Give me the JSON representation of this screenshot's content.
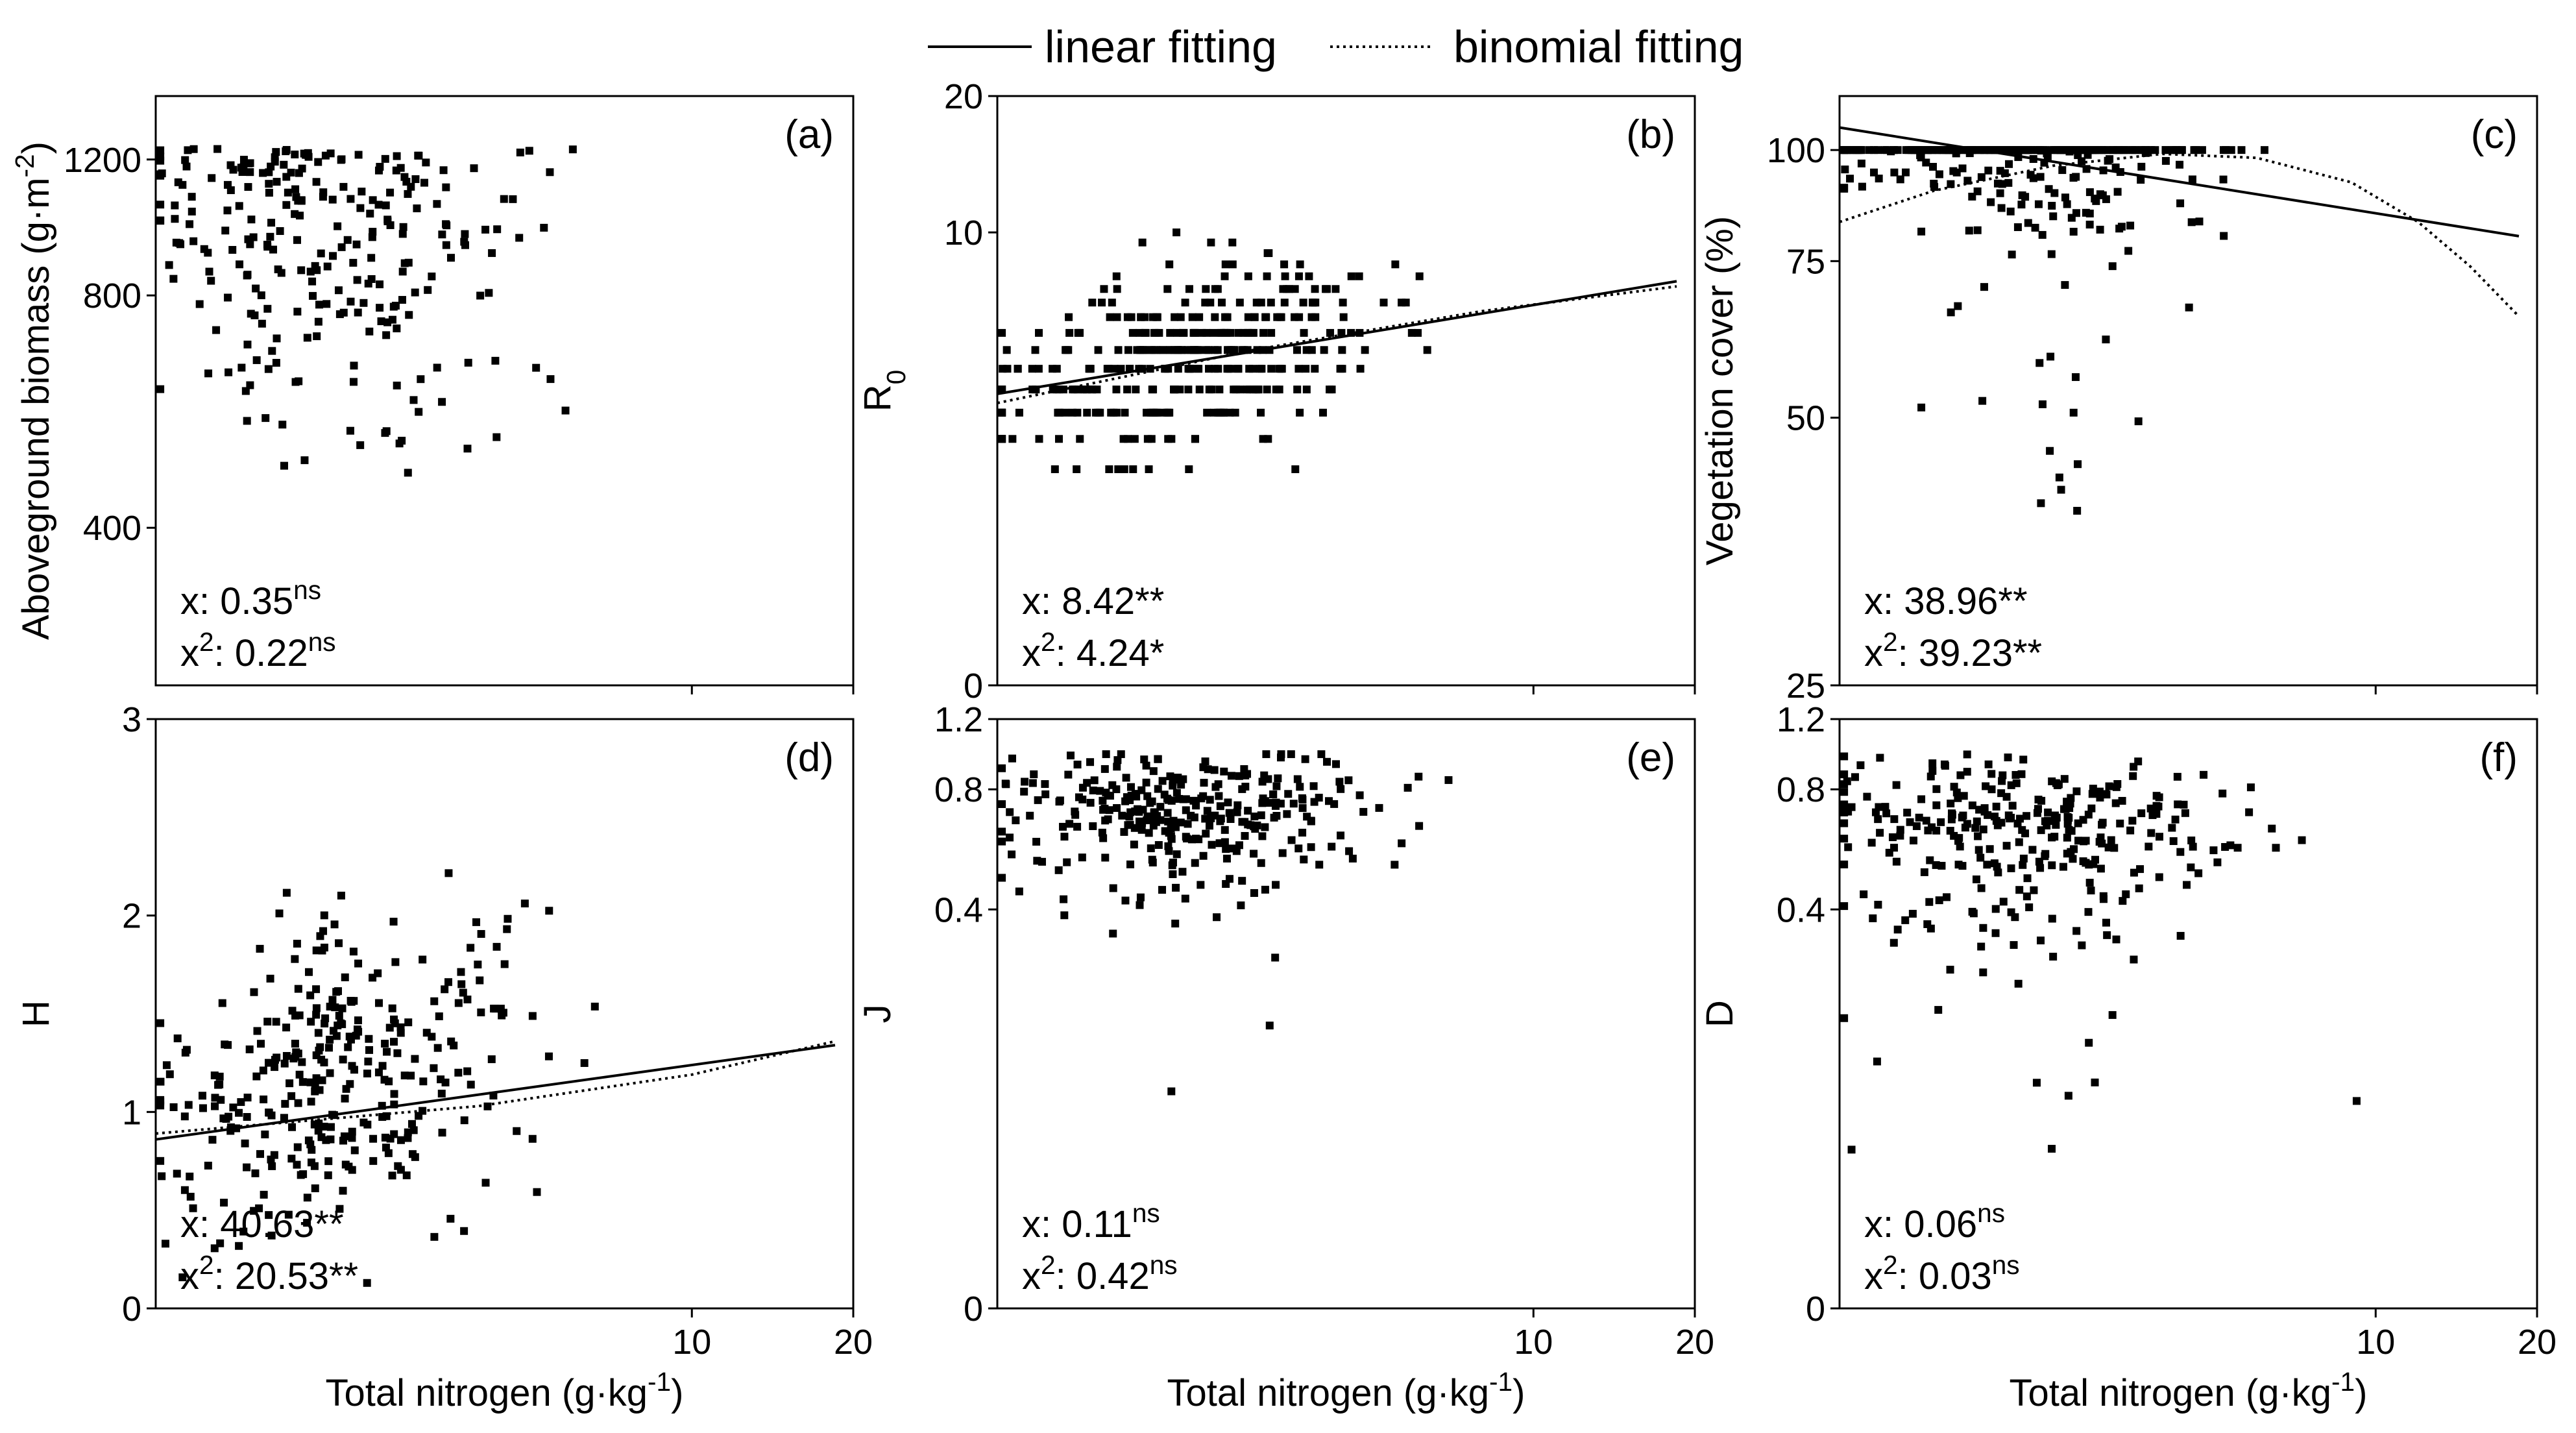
{
  "legend": {
    "linear_label": "linear fitting",
    "binomial_label": "binomial fitting"
  },
  "chart_data": [
    {
      "type": "scatter",
      "panel_label": "(a)",
      "ylabel": "Aboveground biomass (g·m",
      "ylabel_sup": "-2",
      "ylabel_tail": ")",
      "xlabel": "",
      "xscale": "log",
      "yscale": "log",
      "xlim": [
        1,
        20
      ],
      "ylim": [
        250,
        1450
      ],
      "xticks": [
        {
          "v": 10,
          "label": ""
        },
        {
          "v": 20,
          "label": ""
        }
      ],
      "yticks": [
        {
          "v": 400,
          "label": "400"
        },
        {
          "v": 800,
          "label": "800"
        },
        {
          "v": 1200,
          "label": "1200"
        }
      ],
      "fits": [],
      "stats": [
        {
          "prefix": "x: ",
          "value": "0.35",
          "sup": "ns"
        },
        {
          "prefix": "x",
          "prefix_sup": "2",
          "mid": ": ",
          "value": "0.22",
          "sup": "ns"
        }
      ],
      "gen": {
        "seed": 11,
        "n": 260,
        "ymin": 320,
        "ymax": 1240,
        "mode": "spread"
      }
    },
    {
      "type": "scatter",
      "panel_label": "(b)",
      "ylabel": "R",
      "ylabel_sub": "0",
      "xlabel": "",
      "xscale": "log",
      "yscale": "log",
      "xlim": [
        1,
        20
      ],
      "ylim": [
        1,
        20
      ],
      "xticks": [
        {
          "v": 10,
          "label": ""
        },
        {
          "v": 20,
          "label": ""
        }
      ],
      "yticks": [
        {
          "v": 1,
          "label": "0"
        },
        {
          "v": 10,
          "label": "10"
        },
        {
          "v": 20,
          "label": "20"
        }
      ],
      "fits": [
        {
          "kind": "linear",
          "x": [
            1,
            18.5
          ],
          "y": [
            4.4,
            7.8
          ]
        },
        {
          "kind": "binomial",
          "x": [
            1,
            3,
            8,
            18.5
          ],
          "y": [
            4.2,
            5.5,
            6.7,
            7.6
          ]
        }
      ],
      "stats": [
        {
          "prefix": "x: ",
          "value": "8.42**",
          "sup": ""
        },
        {
          "prefix": "x",
          "prefix_sup": "2",
          "mid": ": ",
          "value": "4.24*",
          "sup": ""
        }
      ],
      "gen": {
        "seed": 23,
        "n": 360,
        "levels": [
          3,
          3.5,
          4,
          4.5,
          5,
          5.5,
          6,
          6.5,
          7,
          7.5,
          8,
          8.5,
          9,
          9.5,
          10,
          11,
          12
        ],
        "mode": "levels"
      }
    },
    {
      "type": "scatter",
      "panel_label": "(c)",
      "ylabel": "Vegetation cover (%)",
      "xlabel": "",
      "xscale": "log",
      "yscale": "log",
      "xlim": [
        1,
        20
      ],
      "ylim": [
        25,
        115
      ],
      "xticks": [
        {
          "v": 10,
          "label": ""
        },
        {
          "v": 20,
          "label": ""
        }
      ],
      "yticks": [
        {
          "v": 25,
          "label": "25"
        },
        {
          "v": 50,
          "label": "50"
        },
        {
          "v": 75,
          "label": "75"
        },
        {
          "v": 100,
          "label": "100"
        }
      ],
      "fits": [
        {
          "kind": "linear",
          "x": [
            1,
            18.5
          ],
          "y": [
            106,
            80
          ]
        },
        {
          "kind": "binomial",
          "x": [
            1,
            1.5,
            2.5,
            4,
            6,
            9,
            12,
            15,
            18.5
          ],
          "y": [
            83,
            90,
            96,
            99,
            98,
            92,
            83,
            74,
            65
          ]
        }
      ],
      "stats": [
        {
          "prefix": "x: ",
          "value": "38.96**",
          "sup": ""
        },
        {
          "prefix": "x",
          "prefix_sup": "2",
          "mid": ": ",
          "value": "39.23**",
          "sup": ""
        }
      ],
      "gen": {
        "seed": 37,
        "n": 330,
        "mode": "cover"
      }
    },
    {
      "type": "scatter",
      "panel_label": "(d)",
      "ylabel": "H",
      "xlabel": "Total nitrogen (g·kg",
      "xlabel_sup": "-1",
      "xlabel_tail": ")",
      "xscale": "log",
      "yscale": "linear",
      "xlim": [
        1,
        20
      ],
      "ylim": [
        0,
        3
      ],
      "xticks": [
        {
          "v": 10,
          "label": "10"
        },
        {
          "v": 20,
          "label": "20"
        }
      ],
      "yticks": [
        {
          "v": 0,
          "label": "0"
        },
        {
          "v": 1,
          "label": "1"
        },
        {
          "v": 2,
          "label": "2"
        },
        {
          "v": 3,
          "label": "3"
        }
      ],
      "fits": [
        {
          "kind": "linear",
          "x": [
            1,
            18.5
          ],
          "y": [
            0.86,
            1.34
          ]
        },
        {
          "kind": "binomial",
          "x": [
            1,
            4,
            10,
            18.5
          ],
          "y": [
            0.89,
            1.03,
            1.19,
            1.36
          ]
        }
      ],
      "stats": [
        {
          "prefix": "x: ",
          "value": "40.63**",
          "sup": ""
        },
        {
          "prefix": "x",
          "prefix_sup": "2",
          "mid": ": ",
          "value": "20.53**",
          "sup": ""
        }
      ],
      "gen": {
        "seed": 41,
        "n": 320,
        "ymin": 0.05,
        "ymax": 2.3,
        "mode": "trend",
        "a": 0.9,
        "b": 0.35,
        "sd": 0.38
      }
    },
    {
      "type": "scatter",
      "panel_label": "(e)",
      "ylabel": "J",
      "xlabel": "Total nitrogen (g·kg",
      "xlabel_sup": "-1",
      "xlabel_tail": ")",
      "xscale": "log",
      "yscale": "log",
      "xlim": [
        1,
        20
      ],
      "ylim": [
        0.04,
        1.2
      ],
      "xticks": [
        {
          "v": 10,
          "label": "10"
        },
        {
          "v": 20,
          "label": "20"
        }
      ],
      "yticks": [
        {
          "v": 0.04,
          "label": "0"
        },
        {
          "v": 0.4,
          "label": "0.4"
        },
        {
          "v": 0.8,
          "label": "0.8"
        },
        {
          "v": 1.2,
          "label": "1.2"
        }
      ],
      "fits": [],
      "stats": [
        {
          "prefix": "x: ",
          "value": "0.11",
          "sup": "ns"
        },
        {
          "prefix": "x",
          "prefix_sup": "2",
          "mid": ": ",
          "value": "0.42",
          "sup": "ns"
        }
      ],
      "gen": {
        "seed": 53,
        "n": 310,
        "ymin": 0.14,
        "ymax": 0.98,
        "mode": "upper",
        "center": 0.72,
        "sd": 0.14
      }
    },
    {
      "type": "scatter",
      "panel_label": "(f)",
      "ylabel": "D",
      "xlabel": "Total nitrogen (g·kg",
      "xlabel_sup": "-1",
      "xlabel_tail": ")",
      "xscale": "log",
      "yscale": "log",
      "xlim": [
        1,
        20
      ],
      "ylim": [
        0.04,
        1.2
      ],
      "xticks": [
        {
          "v": 10,
          "label": "10"
        },
        {
          "v": 20,
          "label": "20"
        }
      ],
      "yticks": [
        {
          "v": 0.04,
          "label": "0"
        },
        {
          "v": 0.4,
          "label": "0.4"
        },
        {
          "v": 0.8,
          "label": "0.8"
        },
        {
          "v": 1.2,
          "label": "1.2"
        }
      ],
      "fits": [],
      "stats": [
        {
          "prefix": "x: ",
          "value": "0.06",
          "sup": "ns"
        },
        {
          "prefix": "x",
          "prefix_sup": "2",
          "mid": ": ",
          "value": "0.03",
          "sup": "ns"
        }
      ],
      "gen": {
        "seed": 67,
        "n": 310,
        "ymin": 0.1,
        "ymax": 1.0,
        "mode": "upper",
        "center": 0.64,
        "sd": 0.14
      }
    }
  ]
}
